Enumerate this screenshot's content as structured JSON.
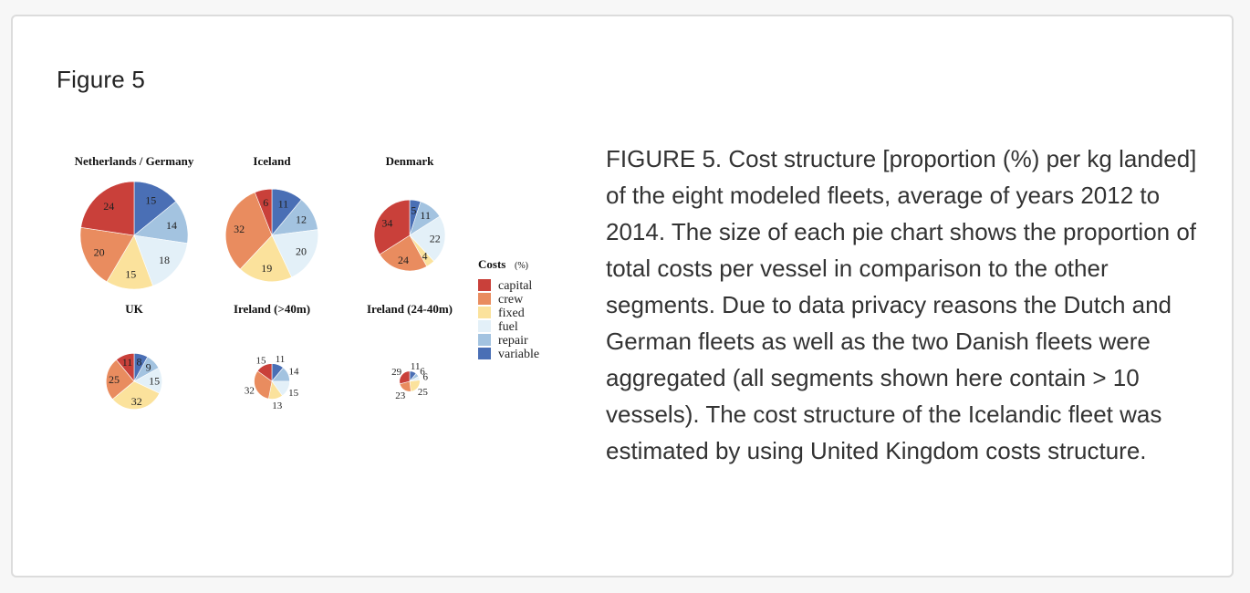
{
  "figure": {
    "title": "Figure 5",
    "caption": "FIGURE 5. Cost structure [proportion (%) per kg landed] of the eight modeled fleets, average of years 2012 to 2014. The size of each pie chart shows the proportion of total costs per vessel in comparison to the other segments. Due to data privacy reasons the Dutch and German fleets as well as the two Danish fleets were aggregated (all segments shown here contain > 10 vessels). The cost structure of the Icelandic fleet was estimated by using United Kingdom costs structure."
  },
  "chart_data": {
    "type": "pie",
    "legend": {
      "title": "Costs",
      "unit": "(%)",
      "placement": "right",
      "items": [
        "capital",
        "crew",
        "fixed",
        "fuel",
        "repair",
        "variable"
      ]
    },
    "colors": {
      "capital": "#c9403a",
      "crew": "#e98c5f",
      "fixed": "#fbe29c",
      "fuel": "#e3f0f8",
      "repair": "#a3c3e0",
      "variable": "#4a6fb5"
    },
    "charts": [
      {
        "title": "Netherlands / Germany",
        "relative_size": 1.0,
        "values": {
          "variable": 15,
          "repair": 14,
          "fuel": 18,
          "fixed": 15,
          "crew": 20,
          "capital": 24
        }
      },
      {
        "title": "Iceland",
        "relative_size": 0.86,
        "values": {
          "variable": 11,
          "repair": 12,
          "fuel": 20,
          "fixed": 19,
          "crew": 32,
          "capital": 6
        }
      },
      {
        "title": "Denmark",
        "relative_size": 0.66,
        "values": {
          "variable": 5,
          "repair": 11,
          "fuel": 22,
          "fixed": 4,
          "crew": 24,
          "capital": 34
        }
      },
      {
        "title": "UK",
        "relative_size": 0.52,
        "values": {
          "variable": 8,
          "repair": 9,
          "fuel": 15,
          "fixed": 32,
          "crew": 25,
          "capital": 11
        }
      },
      {
        "title": "Ireland (>40m)",
        "relative_size": 0.33,
        "values": {
          "variable": 11,
          "repair": 14,
          "fuel": 15,
          "fixed": 13,
          "crew": 32,
          "capital": 15
        }
      },
      {
        "title": "Ireland (24-40m)",
        "relative_size": 0.19,
        "values": {
          "variable": 11,
          "repair": 6,
          "fuel": 6,
          "fixed": 25,
          "crew": 23,
          "capital": 29
        }
      }
    ]
  }
}
